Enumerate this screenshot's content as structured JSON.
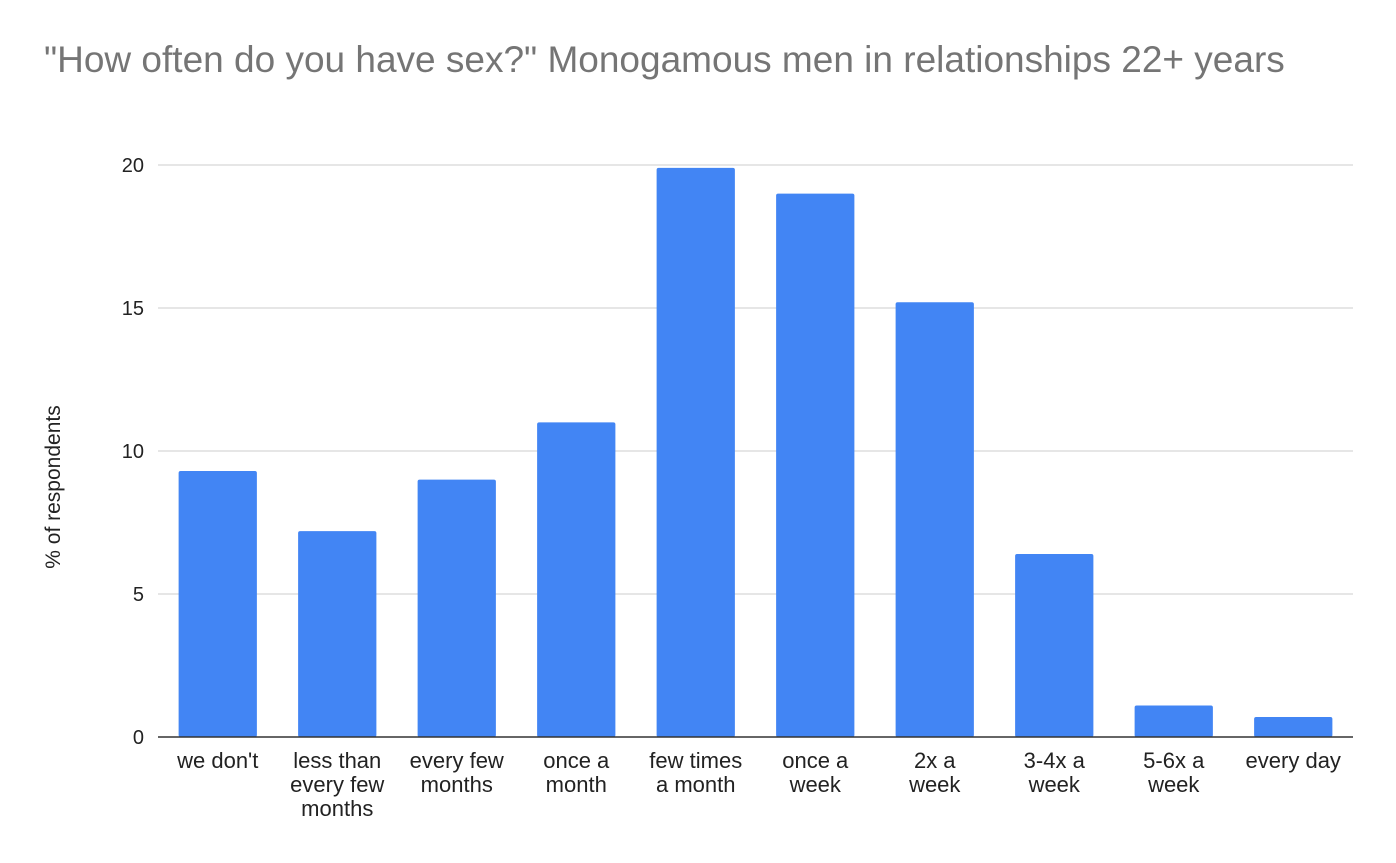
{
  "chart_data": {
    "type": "bar",
    "title": "\"How often do you have sex?\" Monogamous men in relationships 22+ years",
    "xlabel": "",
    "ylabel": "% of respondents",
    "ylim": [
      0,
      20
    ],
    "yticks": [
      0,
      5,
      10,
      15,
      20
    ],
    "grid": true,
    "legend": "none",
    "bar_color": "#4285f4",
    "categories": [
      "we don't",
      "less than every few months",
      "every few months",
      "once a month",
      "few times a month",
      "once a week",
      "2x a week",
      "3-4x a week",
      "5-6x a week",
      "every day"
    ],
    "category_lines": [
      [
        "we don't"
      ],
      [
        "less than",
        "every few",
        "months"
      ],
      [
        "every few",
        "months"
      ],
      [
        "once a",
        "month"
      ],
      [
        "few times",
        "a month"
      ],
      [
        "once a",
        "week"
      ],
      [
        "2x a",
        "week"
      ],
      [
        "3-4x a",
        "week"
      ],
      [
        "5-6x a",
        "week"
      ],
      [
        "every day"
      ]
    ],
    "values": [
      9.3,
      7.2,
      9.0,
      11.0,
      19.9,
      19.0,
      15.2,
      6.4,
      1.1,
      0.7
    ]
  }
}
